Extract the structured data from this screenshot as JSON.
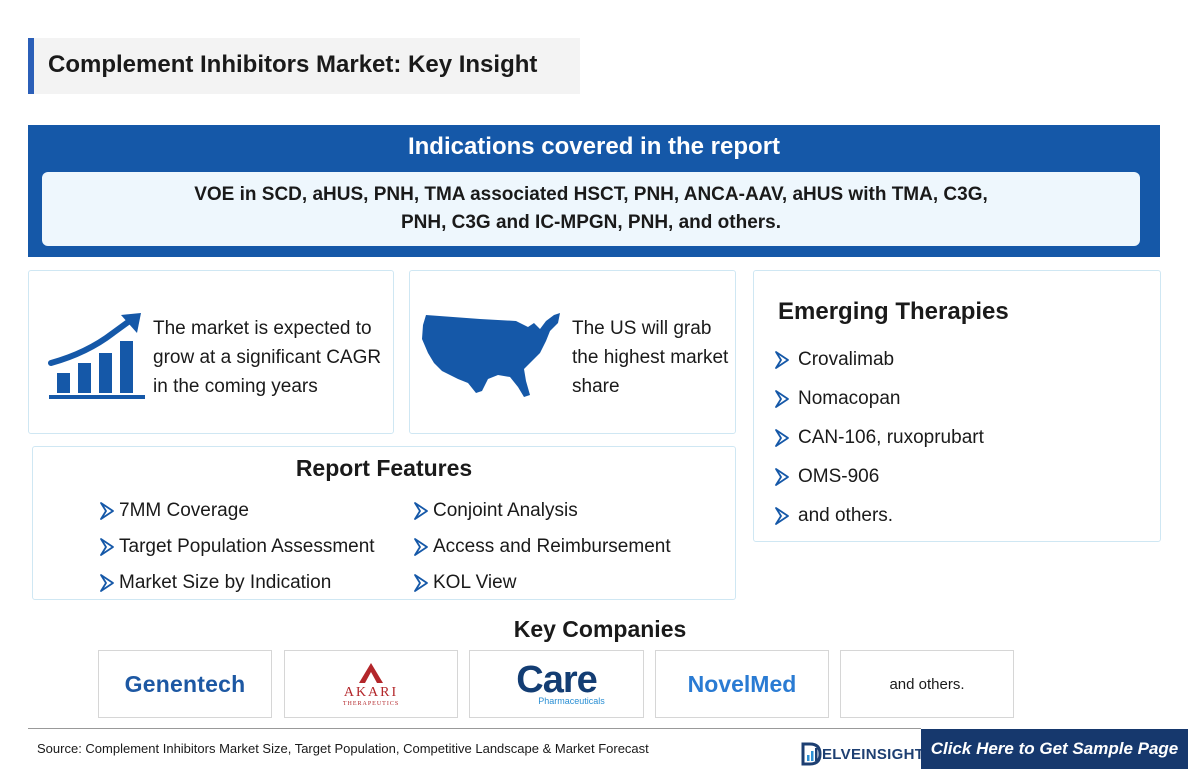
{
  "header": {
    "title": "Complement Inhibitors Market: Key Insight"
  },
  "indications": {
    "heading": "Indications covered in the report",
    "text": "VOE in SCD, aHUS, PNH, TMA associated HSCT, PNH, ANCA-AAV, aHUS with TMA, C3G, PNH, C3G and IC-MPGN, PNH, and others."
  },
  "insights": {
    "growth_text": "The market is expected to grow at a significant CAGR in the coming years",
    "us_text": "The US will grab the highest market share"
  },
  "emerging": {
    "title": "Emerging Therapies",
    "items": [
      "Crovalimab",
      "Nomacopan",
      "CAN-106, ruxoprubart",
      "OMS-906",
      "and others."
    ]
  },
  "features": {
    "title": "Report Features",
    "left": [
      "7MM Coverage",
      "Target Population Assessment",
      "Market Size by Indication"
    ],
    "right": [
      "Conjoint Analysis",
      "Access and Reimbursement",
      "KOL View"
    ]
  },
  "companies": {
    "title": "Key Companies",
    "logos": {
      "genentech": "Genentech",
      "akari": "AKARI",
      "akari_sub": "THERAPEUTICS",
      "care": "Care",
      "care_sub": "Pharmaceuticals",
      "novelmed": "NovelMed"
    },
    "others": "and others."
  },
  "footer": {
    "source": "Source: Complement Inhibitors Market Size, Target Population, Competitive Landscape & Market Forecast",
    "brand": "ELVEINSIGHT",
    "cta": "Click Here to Get Sample Page"
  },
  "colors": {
    "primary_blue": "#1558a8",
    "light_panel": "#eef7fd",
    "accent_border": "#2b5fb8",
    "cta_navy": "#16386d"
  }
}
